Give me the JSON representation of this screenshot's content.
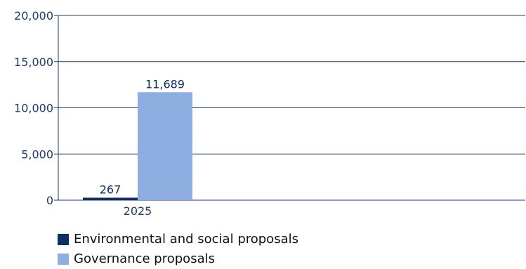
{
  "chart_data": {
    "type": "bar",
    "categories": [
      "2025"
    ],
    "series": [
      {
        "name": "Environmental and social proposals",
        "values": [
          267
        ],
        "color": "#0d2f63"
      },
      {
        "name": "Governance proposals",
        "values": [
          11689
        ],
        "color": "#8eaee1"
      }
    ],
    "data_labels": [
      "267",
      "11,689"
    ],
    "y_ticks": [
      "0",
      "5,000",
      "10,000",
      "15,000",
      "20,000"
    ],
    "ylim": [
      0,
      20000
    ],
    "grid": true,
    "legend_position": "bottom-left",
    "axis_color": "#1f3e6d"
  }
}
